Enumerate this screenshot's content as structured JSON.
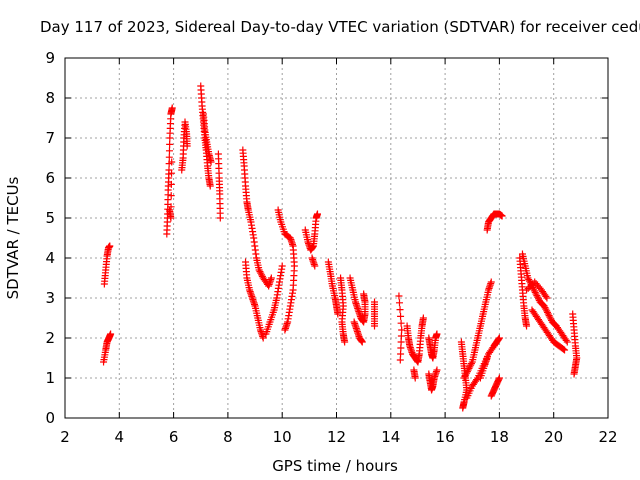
{
  "chart_data": {
    "type": "scatter",
    "title": "Day 117 of 2023, Sidereal Day-to-day VTEC variation (SDTVAR) for receiver cedu",
    "xlabel": "GPS time / hours",
    "ylabel": "SDTVAR / TECUs",
    "xlim": [
      2,
      22
    ],
    "ylim": [
      0,
      9
    ],
    "xticks": [
      "2",
      "4",
      "6",
      "8",
      "10",
      "12",
      "14",
      "16",
      "18",
      "20",
      "22"
    ],
    "yticks": [
      "0",
      "1",
      "2",
      "3",
      "4",
      "5",
      "6",
      "7",
      "8",
      "9"
    ],
    "grid": true,
    "marker": "+",
    "color": "#ff0000",
    "series": [
      {
        "name": "SDTVAR",
        "segments": [
          [
            [
              3.45,
              3.35
            ],
            [
              3.5,
              3.7
            ],
            [
              3.55,
              4.05
            ],
            [
              3.6,
              4.25
            ],
            [
              3.65,
              4.3
            ]
          ],
          [
            [
              3.42,
              1.4
            ],
            [
              3.5,
              1.7
            ],
            [
              3.55,
              1.9
            ],
            [
              3.62,
              2.0
            ],
            [
              3.68,
              2.1
            ]
          ],
          [
            [
              5.75,
              4.6
            ],
            [
              5.78,
              5.1
            ],
            [
              5.8,
              5.7
            ],
            [
              5.83,
              6.2
            ],
            [
              5.86,
              7.0
            ],
            [
              5.9,
              7.6
            ],
            [
              5.95,
              7.75
            ]
          ],
          [
            [
              5.85,
              5.2
            ],
            [
              5.9,
              5.0
            ],
            [
              5.93,
              6.4
            ]
          ],
          [
            [
              6.3,
              6.2
            ],
            [
              6.35,
              6.5
            ],
            [
              6.38,
              7.0
            ],
            [
              6.42,
              7.4
            ],
            [
              6.48,
              7.1
            ],
            [
              6.5,
              6.8
            ]
          ],
          [
            [
              7.0,
              8.3
            ],
            [
              7.05,
              7.8
            ],
            [
              7.1,
              7.4
            ],
            [
              7.15,
              7.0
            ],
            [
              7.2,
              6.7
            ],
            [
              7.25,
              6.3
            ],
            [
              7.3,
              6.0
            ],
            [
              7.35,
              5.8
            ]
          ],
          [
            [
              7.1,
              7.6
            ],
            [
              7.15,
              7.2
            ],
            [
              7.22,
              6.9
            ],
            [
              7.3,
              6.6
            ],
            [
              7.38,
              6.4
            ]
          ],
          [
            [
              7.65,
              6.6
            ],
            [
              7.68,
              6.0
            ],
            [
              7.7,
              5.6
            ],
            [
              7.72,
              5.0
            ]
          ],
          [
            [
              8.55,
              6.7
            ],
            [
              8.6,
              6.3
            ],
            [
              8.65,
              5.8
            ],
            [
              8.7,
              5.4
            ],
            [
              8.75,
              5.2
            ],
            [
              8.85,
              4.9
            ],
            [
              8.95,
              4.5
            ],
            [
              9.05,
              4.0
            ],
            [
              9.15,
              3.7
            ],
            [
              9.3,
              3.5
            ],
            [
              9.5,
              3.3
            ],
            [
              9.6,
              3.5
            ]
          ],
          [
            [
              8.65,
              3.9
            ],
            [
              8.7,
              3.5
            ],
            [
              8.8,
              3.2
            ],
            [
              8.9,
              3.0
            ],
            [
              9.0,
              2.8
            ],
            [
              9.1,
              2.5
            ],
            [
              9.2,
              2.2
            ],
            [
              9.3,
              2.0
            ]
          ],
          [
            [
              9.4,
              2.1
            ],
            [
              9.55,
              2.4
            ],
            [
              9.7,
              2.7
            ],
            [
              9.8,
              3.0
            ],
            [
              9.9,
              3.4
            ],
            [
              10.0,
              3.8
            ]
          ],
          [
            [
              9.85,
              5.2
            ],
            [
              9.95,
              4.9
            ],
            [
              10.1,
              4.6
            ],
            [
              10.3,
              4.5
            ],
            [
              10.4,
              4.3
            ],
            [
              10.45,
              3.8
            ],
            [
              10.4,
              3.2
            ],
            [
              10.3,
              2.8
            ],
            [
              10.2,
              2.4
            ],
            [
              10.1,
              2.2
            ]
          ],
          [
            [
              10.85,
              4.7
            ],
            [
              10.95,
              4.4
            ],
            [
              11.05,
              4.2
            ],
            [
              11.15,
              4.3
            ],
            [
              11.2,
              4.6
            ],
            [
              11.25,
              5.0
            ],
            [
              11.3,
              5.1
            ]
          ],
          [
            [
              11.1,
              4.0
            ],
            [
              11.2,
              3.8
            ]
          ],
          [
            [
              11.7,
              3.9
            ],
            [
              11.78,
              3.6
            ],
            [
              11.85,
              3.3
            ],
            [
              11.95,
              3.0
            ],
            [
              12.0,
              2.8
            ],
            [
              12.05,
              2.6
            ]
          ],
          [
            [
              12.15,
              3.5
            ],
            [
              12.2,
              3.2
            ],
            [
              12.25,
              2.8
            ],
            [
              12.2,
              2.4
            ],
            [
              12.25,
              2.1
            ],
            [
              12.3,
              1.9
            ]
          ],
          [
            [
              12.5,
              3.5
            ],
            [
              12.6,
              3.2
            ],
            [
              12.7,
              2.9
            ],
            [
              12.8,
              2.7
            ],
            [
              12.9,
              2.5
            ],
            [
              13.0,
              2.4
            ],
            [
              13.05,
              2.6
            ],
            [
              13.05,
              2.9
            ],
            [
              13.0,
              3.1
            ]
          ],
          [
            [
              12.65,
              2.4
            ],
            [
              12.75,
              2.2
            ],
            [
              12.85,
              2.0
            ],
            [
              12.95,
              1.9
            ]
          ],
          [
            [
              13.4,
              2.9
            ],
            [
              13.4,
              2.6
            ],
            [
              13.4,
              2.3
            ]
          ],
          [
            [
              14.3,
              3.05
            ],
            [
              14.4,
              2.2
            ],
            [
              14.35,
              1.45
            ]
          ],
          [
            [
              14.6,
              2.3
            ],
            [
              14.65,
              2.0
            ],
            [
              14.7,
              1.8
            ],
            [
              14.8,
              1.6
            ],
            [
              14.9,
              1.5
            ],
            [
              15.0,
              1.4
            ],
            [
              15.05,
              1.6
            ],
            [
              15.1,
              2.0
            ],
            [
              15.15,
              2.3
            ],
            [
              15.2,
              2.5
            ]
          ],
          [
            [
              14.85,
              1.2
            ],
            [
              14.9,
              1.0
            ]
          ],
          [
            [
              15.4,
              2.0
            ],
            [
              15.45,
              1.8
            ],
            [
              15.5,
              1.6
            ],
            [
              15.55,
              1.5
            ],
            [
              15.6,
              1.7
            ],
            [
              15.65,
              2.0
            ],
            [
              15.7,
              2.1
            ]
          ],
          [
            [
              15.4,
              1.1
            ],
            [
              15.45,
              0.9
            ],
            [
              15.5,
              0.7
            ],
            [
              15.55,
              0.8
            ],
            [
              15.6,
              1.0
            ],
            [
              15.7,
              1.2
            ]
          ],
          [
            [
              16.6,
              1.9
            ],
            [
              16.65,
              1.6
            ],
            [
              16.7,
              1.3
            ],
            [
              16.75,
              1.0
            ],
            [
              16.8,
              0.7
            ],
            [
              16.7,
              0.4
            ],
            [
              16.65,
              0.25
            ]
          ],
          [
            [
              16.7,
              1.0
            ],
            [
              16.85,
              1.2
            ],
            [
              17.0,
              1.4
            ],
            [
              17.1,
              1.7
            ],
            [
              17.2,
              2.0
            ],
            [
              17.3,
              2.3
            ],
            [
              17.4,
              2.6
            ],
            [
              17.5,
              2.9
            ],
            [
              17.6,
              3.2
            ],
            [
              17.7,
              3.4
            ]
          ],
          [
            [
              16.8,
              0.5
            ],
            [
              17.0,
              0.8
            ],
            [
              17.2,
              1.0
            ],
            [
              17.4,
              1.3
            ],
            [
              17.6,
              1.6
            ],
            [
              17.8,
              1.8
            ],
            [
              17.9,
              1.9
            ],
            [
              18.0,
              2.0
            ]
          ],
          [
            [
              17.3,
              1.0
            ],
            [
              17.45,
              1.3
            ],
            [
              17.55,
              1.5
            ]
          ],
          [
            [
              17.55,
              4.7
            ],
            [
              17.6,
              4.9
            ],
            [
              17.7,
              5.0
            ],
            [
              17.8,
              5.1
            ],
            [
              17.9,
              5.1
            ],
            [
              18.0,
              5.1
            ],
            [
              18.1,
              5.05
            ]
          ],
          [
            [
              17.7,
              0.55
            ],
            [
              17.8,
              0.7
            ],
            [
              17.9,
              0.85
            ],
            [
              18.0,
              1.0
            ]
          ],
          [
            [
              18.75,
              4.0
            ],
            [
              18.8,
              3.6
            ],
            [
              18.85,
              3.2
            ],
            [
              18.9,
              2.8
            ],
            [
              18.95,
              2.5
            ],
            [
              19.0,
              2.3
            ]
          ],
          [
            [
              18.85,
              4.1
            ],
            [
              18.95,
              3.8
            ],
            [
              19.05,
              3.5
            ],
            [
              19.2,
              3.3
            ],
            [
              19.35,
              3.1
            ],
            [
              19.5,
              2.9
            ],
            [
              19.65,
              2.8
            ],
            [
              19.8,
              2.6
            ],
            [
              19.95,
              2.4
            ],
            [
              20.1,
              2.3
            ],
            [
              20.3,
              2.1
            ],
            [
              20.5,
              1.9
            ]
          ],
          [
            [
              19.2,
              2.7
            ],
            [
              19.4,
              2.5
            ],
            [
              19.6,
              2.3
            ],
            [
              19.8,
              2.1
            ],
            [
              20.0,
              1.9
            ],
            [
              20.2,
              1.8
            ],
            [
              20.4,
              1.7
            ]
          ],
          [
            [
              19.0,
              3.2
            ],
            [
              19.3,
              3.4
            ],
            [
              19.55,
              3.2
            ],
            [
              19.75,
              3.0
            ]
          ],
          [
            [
              20.7,
              2.6
            ],
            [
              20.75,
              2.2
            ],
            [
              20.8,
              1.8
            ],
            [
              20.85,
              1.5
            ],
            [
              20.8,
              1.3
            ],
            [
              20.75,
              1.1
            ]
          ]
        ]
      }
    ]
  }
}
